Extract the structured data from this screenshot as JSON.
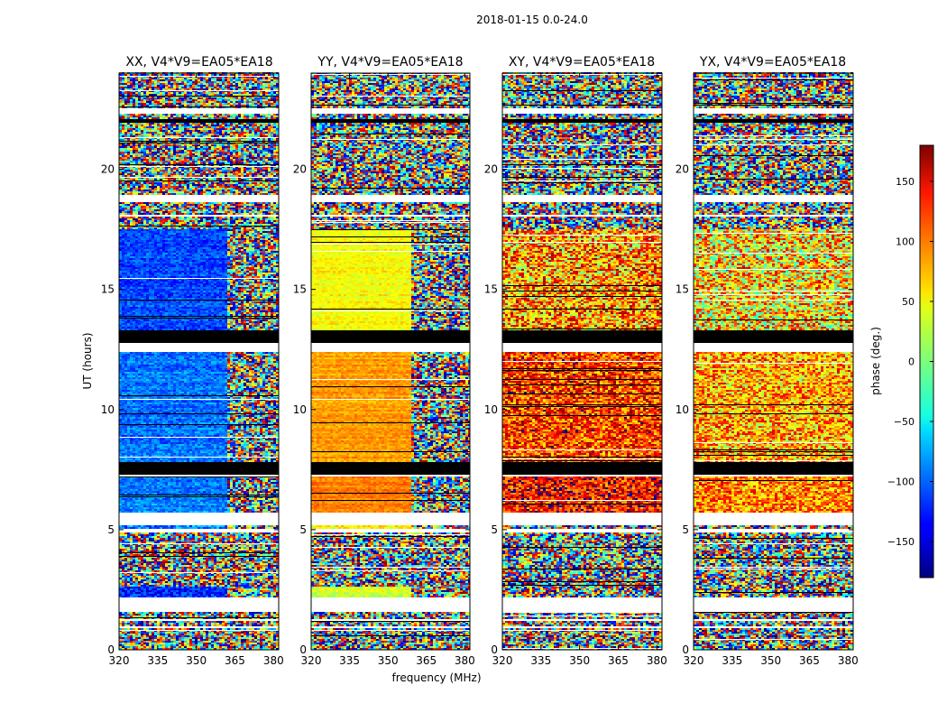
{
  "figure_title": "2018-01-15 0.0-24.0",
  "chart_data": [
    {
      "type": "heatmap",
      "title": "XX, V4*V9=EA05*EA18",
      "xlabel": "frequency (MHz)",
      "ylabel": "UT (hours)",
      "xlim": [
        320,
        382
      ],
      "ylim": [
        0,
        24
      ],
      "xticks": [
        320,
        335,
        350,
        365,
        380
      ],
      "yticks": [
        0,
        5,
        10,
        15,
        20
      ],
      "x_split_mhz": 362,
      "segments": [
        {
          "ut": [
            2.2,
            2.6
          ],
          "base_phase": -120,
          "noise": 35
        },
        {
          "ut": [
            5.0,
            5.2
          ],
          "base_phase": -100,
          "noise": 40
        },
        {
          "ut": [
            5.7,
            7.2
          ],
          "base_phase": -90,
          "noise": 25
        },
        {
          "ut": [
            7.8,
            12.4
          ],
          "base_phase": -95,
          "noise": 25
        },
        {
          "ut": [
            13.3,
            17.5
          ],
          "base_phase": -110,
          "noise": 25
        }
      ]
    },
    {
      "type": "heatmap",
      "title": "YY, V4*V9=EA05*EA18",
      "xlabel": "frequency (MHz)",
      "ylabel": "",
      "xlim": [
        320,
        382
      ],
      "ylim": [
        0,
        24
      ],
      "xticks": [
        320,
        335,
        350,
        365,
        380
      ],
      "yticks": [
        0,
        5,
        10,
        15,
        20
      ],
      "x_split_mhz": 359,
      "segments": [
        {
          "ut": [
            2.2,
            2.6
          ],
          "base_phase": 25,
          "noise": 20
        },
        {
          "ut": [
            5.0,
            5.2
          ],
          "base_phase": 55,
          "noise": 25
        },
        {
          "ut": [
            5.7,
            7.2
          ],
          "base_phase": 90,
          "noise": 15
        },
        {
          "ut": [
            7.8,
            12.4
          ],
          "base_phase": 80,
          "noise": 15
        },
        {
          "ut": [
            13.3,
            17.5
          ],
          "base_phase": 45,
          "noise": 15
        }
      ]
    },
    {
      "type": "heatmap",
      "title": "XY, V4*V9=EA05*EA18",
      "xlabel": "frequency (MHz)",
      "ylabel": "",
      "xlim": [
        320,
        382
      ],
      "ylim": [
        0,
        24
      ],
      "xticks": [
        320,
        335,
        350,
        365,
        380
      ],
      "yticks": [
        0,
        5,
        10,
        15,
        20
      ],
      "x_split_mhz": 382,
      "segments": [
        {
          "ut": [
            5.7,
            7.2
          ],
          "base_phase": 130,
          "noise": 60
        },
        {
          "ut": [
            7.8,
            12.4
          ],
          "base_phase": 115,
          "noise": 65
        },
        {
          "ut": [
            13.3,
            17.5
          ],
          "base_phase": 80,
          "noise": 90
        }
      ]
    },
    {
      "type": "heatmap",
      "title": "YX, V4*V9=EA05*EA18",
      "xlabel": "frequency (MHz)",
      "ylabel": "",
      "xlim": [
        320,
        382
      ],
      "ylim": [
        0,
        24
      ],
      "xticks": [
        320,
        335,
        350,
        365,
        380
      ],
      "yticks": [
        0,
        5,
        10,
        15,
        20
      ],
      "x_split_mhz": 382,
      "segments": [
        {
          "ut": [
            5.7,
            7.2
          ],
          "base_phase": 90,
          "noise": 60
        },
        {
          "ut": [
            7.8,
            12.4
          ],
          "base_phase": 75,
          "noise": 70
        },
        {
          "ut": [
            13.3,
            17.5
          ],
          "base_phase": 55,
          "noise": 95
        }
      ]
    }
  ],
  "colorbar": {
    "label": "phase (deg.)",
    "range": [
      -180,
      180
    ],
    "ticks": [
      150,
      100,
      50,
      0,
      -50,
      -100,
      -150
    ],
    "colormap": "jet"
  },
  "flagged_ut": [
    [
      0.9,
      1.0
    ],
    [
      1.2,
      1.3
    ],
    [
      1.6,
      2.2
    ],
    [
      4.85,
      5.0
    ],
    [
      5.2,
      5.7
    ],
    [
      7.2,
      7.25
    ],
    [
      12.4,
      12.75
    ],
    [
      18.0,
      18.1
    ],
    [
      18.6,
      18.95
    ],
    [
      22.3,
      22.5
    ]
  ],
  "no_data_ut": [
    [
      7.3,
      7.8
    ],
    [
      12.75,
      13.3
    ],
    [
      21.95,
      22.1
    ]
  ]
}
